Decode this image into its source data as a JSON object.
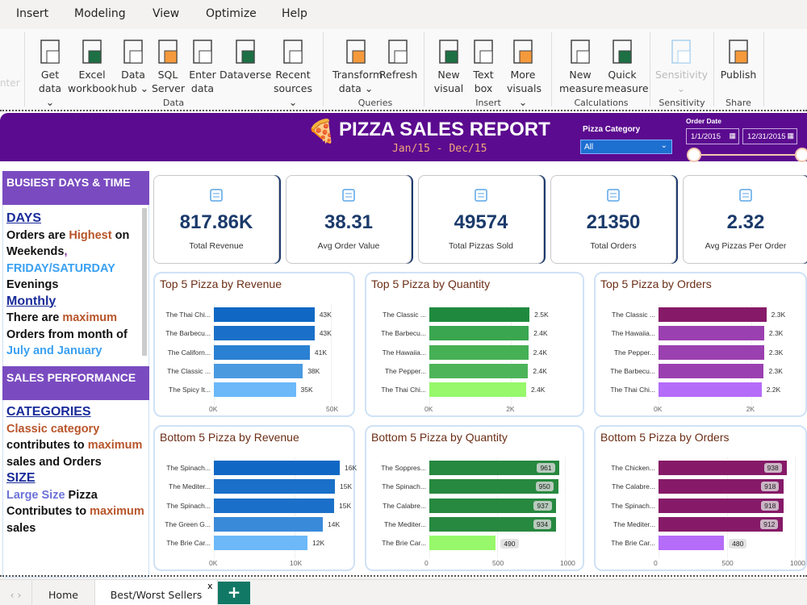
{
  "menu": [
    "Insert",
    "Modeling",
    "View",
    "Optimize",
    "Help"
  ],
  "ribbon": {
    "faded_label": "nter",
    "buttons": [
      {
        "l1": "Get",
        "l2": "data ⌄",
        "icon": "database-table-icon"
      },
      {
        "l1": "Excel",
        "l2": "workbook",
        "icon": "excel-icon"
      },
      {
        "l1": "Data",
        "l2": "hub ⌄",
        "icon": "data-hub-icon"
      },
      {
        "l1": "SQL",
        "l2": "Server",
        "icon": "sql-server-icon"
      },
      {
        "l1": "Enter",
        "l2": "data",
        "icon": "enter-data-icon"
      },
      {
        "l1": "Dataverse",
        "l2": "",
        "icon": "dataverse-icon"
      },
      {
        "l1": "Recent",
        "l2": "sources ⌄",
        "icon": "recent-sources-icon"
      },
      {
        "l1": "Transform",
        "l2": "data ⌄",
        "icon": "transform-data-icon"
      },
      {
        "l1": "Refresh",
        "l2": "",
        "icon": "refresh-icon"
      },
      {
        "l1": "New",
        "l2": "visual",
        "icon": "new-visual-icon"
      },
      {
        "l1": "Text",
        "l2": "box",
        "icon": "text-box-icon"
      },
      {
        "l1": "More",
        "l2": "visuals ⌄",
        "icon": "more-visuals-icon"
      },
      {
        "l1": "New",
        "l2": "measure",
        "icon": "calculator-icon"
      },
      {
        "l1": "Quick",
        "l2": "measure",
        "icon": "quick-measure-icon"
      },
      {
        "l1": "Sensitivity",
        "l2": "⌄",
        "icon": "sensitivity-icon"
      },
      {
        "l1": "Publish",
        "l2": "",
        "icon": "publish-icon"
      }
    ],
    "groups": [
      "Data",
      "Queries",
      "Insert",
      "Calculations",
      "Sensitivity",
      "Share"
    ]
  },
  "header": {
    "title": "PIZZA SALES REPORT",
    "subtitle": "Jan/15  -  Dec/15",
    "category_label": "Pizza Category",
    "category_value": "All",
    "date_label": "Order Date",
    "date_start": "1/1/2015",
    "date_end": "12/31/2015"
  },
  "left": {
    "sec1": "BUSIEST DAYS & TIME",
    "days_h": "DAYS",
    "t1a": "Orders are ",
    "t1b": "Highest",
    "t1c": " on",
    "t2": "Weekends",
    "t2b": ",",
    "t3": "FRIDAY/SATURDAY",
    "t4": "Evenings",
    "monthly_h": "Monthly",
    "t5a": "There are ",
    "t5b": "maximum",
    "t6": "Orders from month of",
    "t7": "July and January",
    "sec2": "SALES PERFORMANCE",
    "cat_h": "CATEGORIES",
    "c1": "Classic category",
    "c2a": "contributes to ",
    "c2b": "maximum",
    "c3": "sales and Orders",
    "size_h": "SIZE",
    "s1a": "Large Size",
    "s1b": " Pizza",
    "s2a": "Contributes to ",
    "s2b": "maximum",
    "s3": "sales"
  },
  "kpis": [
    {
      "value": "817.86K",
      "label": "Total Revenue",
      "icon": "money-icon"
    },
    {
      "value": "38.31",
      "label": "Avg Order Value",
      "icon": "clipboard-icon"
    },
    {
      "value": "49574",
      "label": "Total Pizzas Sold",
      "icon": "pizza-delivery-icon"
    },
    {
      "value": "21350",
      "label": "Total Orders",
      "icon": "order-list-icon"
    },
    {
      "value": "2.32",
      "label": "Avg Pizzas Per Order",
      "icon": "document-icon"
    }
  ],
  "chart_data": [
    {
      "type": "bar",
      "orientation": "horizontal",
      "title": "Top 5 Pizza by Revenue",
      "categories": [
        "The Thai Chi...",
        "The Barbecu...",
        "The Californ...",
        "The Classic ...",
        "The Spicy It..."
      ],
      "values": [
        43000,
        43000,
        41000,
        38000,
        35000
      ],
      "labels": [
        "43K",
        "43K",
        "41K",
        "38K",
        "35K"
      ],
      "ticks": [
        0,
        50000
      ],
      "tick_labels": [
        "0K",
        "50K"
      ],
      "xlim": [
        0,
        50000
      ],
      "colors": [
        "#1068c4",
        "#1a70c8",
        "#2a80d2",
        "#4a9ae0",
        "#6cb8f8"
      ],
      "label_style": "outside"
    },
    {
      "type": "bar",
      "orientation": "horizontal",
      "title": "Top 5 Pizza by Quantity",
      "categories": [
        "The Classic ...",
        "The Barbecu...",
        "The Hawaiia...",
        "The Pepper...",
        "The Thai Chi..."
      ],
      "values": [
        2453,
        2432,
        2422,
        2418,
        2371
      ],
      "labels": [
        "2.5K",
        "2.4K",
        "2.4K",
        "2.4K",
        "2.4K"
      ],
      "ticks": [
        0,
        2000
      ],
      "tick_labels": [
        "0K",
        "2K"
      ],
      "xlim": [
        0,
        3300
      ],
      "colors": [
        "#1f8a3e",
        "#3aa64f",
        "#46b055",
        "#4db45a",
        "#96f86a"
      ],
      "label_style": "outside"
    },
    {
      "type": "bar",
      "orientation": "horizontal",
      "title": "Top 5 Pizza by Orders",
      "categories": [
        "The Classic ...",
        "The Hawaiia...",
        "The Pepper...",
        "The Barbecu...",
        "The Thai Chi..."
      ],
      "values": [
        2329,
        2280,
        2278,
        2273,
        2225
      ],
      "labels": [
        "2.3K",
        "2.3K",
        "2.3K",
        "2.3K",
        "2.2K"
      ],
      "ticks": [
        0,
        2000
      ],
      "tick_labels": [
        "0K",
        "2K"
      ],
      "xlim": [
        0,
        2770
      ],
      "colors": [
        "#861a68",
        "#9b40b0",
        "#9b40b0",
        "#9b40b0",
        "#b56cf8"
      ],
      "label_style": "outside"
    },
    {
      "type": "bar",
      "orientation": "horizontal",
      "title": "Bottom 5 Pizza by Revenue",
      "categories": [
        "The Spinach...",
        "The Mediter...",
        "The Spinach...",
        "The Green G...",
        "The Brie Car..."
      ],
      "values": [
        15600,
        15000,
        14900,
        13500,
        11600
      ],
      "labels": [
        "16K",
        "15K",
        "15K",
        "14K",
        "12K"
      ],
      "ticks": [
        0,
        10000,
        20000
      ],
      "tick_labels": [
        "0K",
        "10K",
        "20K"
      ],
      "xlim": [
        0,
        17000
      ],
      "colors": [
        "#1068c4",
        "#1a70c8",
        "#1a70c8",
        "#3a8ada",
        "#6cb8f8"
      ],
      "label_style": "outside"
    },
    {
      "type": "bar",
      "orientation": "horizontal",
      "title": "Bottom 5 Pizza by Quantity",
      "categories": [
        "The Soppres...",
        "The Spinach...",
        "The Calabre...",
        "The Mediter...",
        "The Brie Car..."
      ],
      "values": [
        961,
        950,
        937,
        934,
        490
      ],
      "labels": [
        "961",
        "950",
        "937",
        "934",
        "490"
      ],
      "ticks": [
        0,
        500,
        1000
      ],
      "tick_labels": [
        "0",
        "500",
        "1000"
      ],
      "xlim": [
        0,
        1000
      ],
      "colors": [
        "#27883f",
        "#27883f",
        "#27883f",
        "#27883f",
        "#96f86a"
      ],
      "label_style": "inside"
    },
    {
      "type": "bar",
      "orientation": "horizontal",
      "title": "Bottom 5 Pizza by Orders",
      "categories": [
        "The Chicken...",
        "The Calabre...",
        "The Spinach...",
        "The Mediter...",
        "The Brie Car..."
      ],
      "values": [
        938,
        918,
        918,
        912,
        480
      ],
      "labels": [
        "938",
        "918",
        "918",
        "912",
        "480"
      ],
      "ticks": [
        0,
        500,
        1000
      ],
      "tick_labels": [
        "0",
        "500",
        "1000"
      ],
      "xlim": [
        0,
        1000
      ],
      "colors": [
        "#861a68",
        "#861a68",
        "#861a68",
        "#861a68",
        "#b56cf8"
      ],
      "label_style": "inside"
    }
  ],
  "tabs": {
    "home": "Home",
    "best_worst": "Best/Worst Sellers",
    "close": "x",
    "add": "+"
  }
}
